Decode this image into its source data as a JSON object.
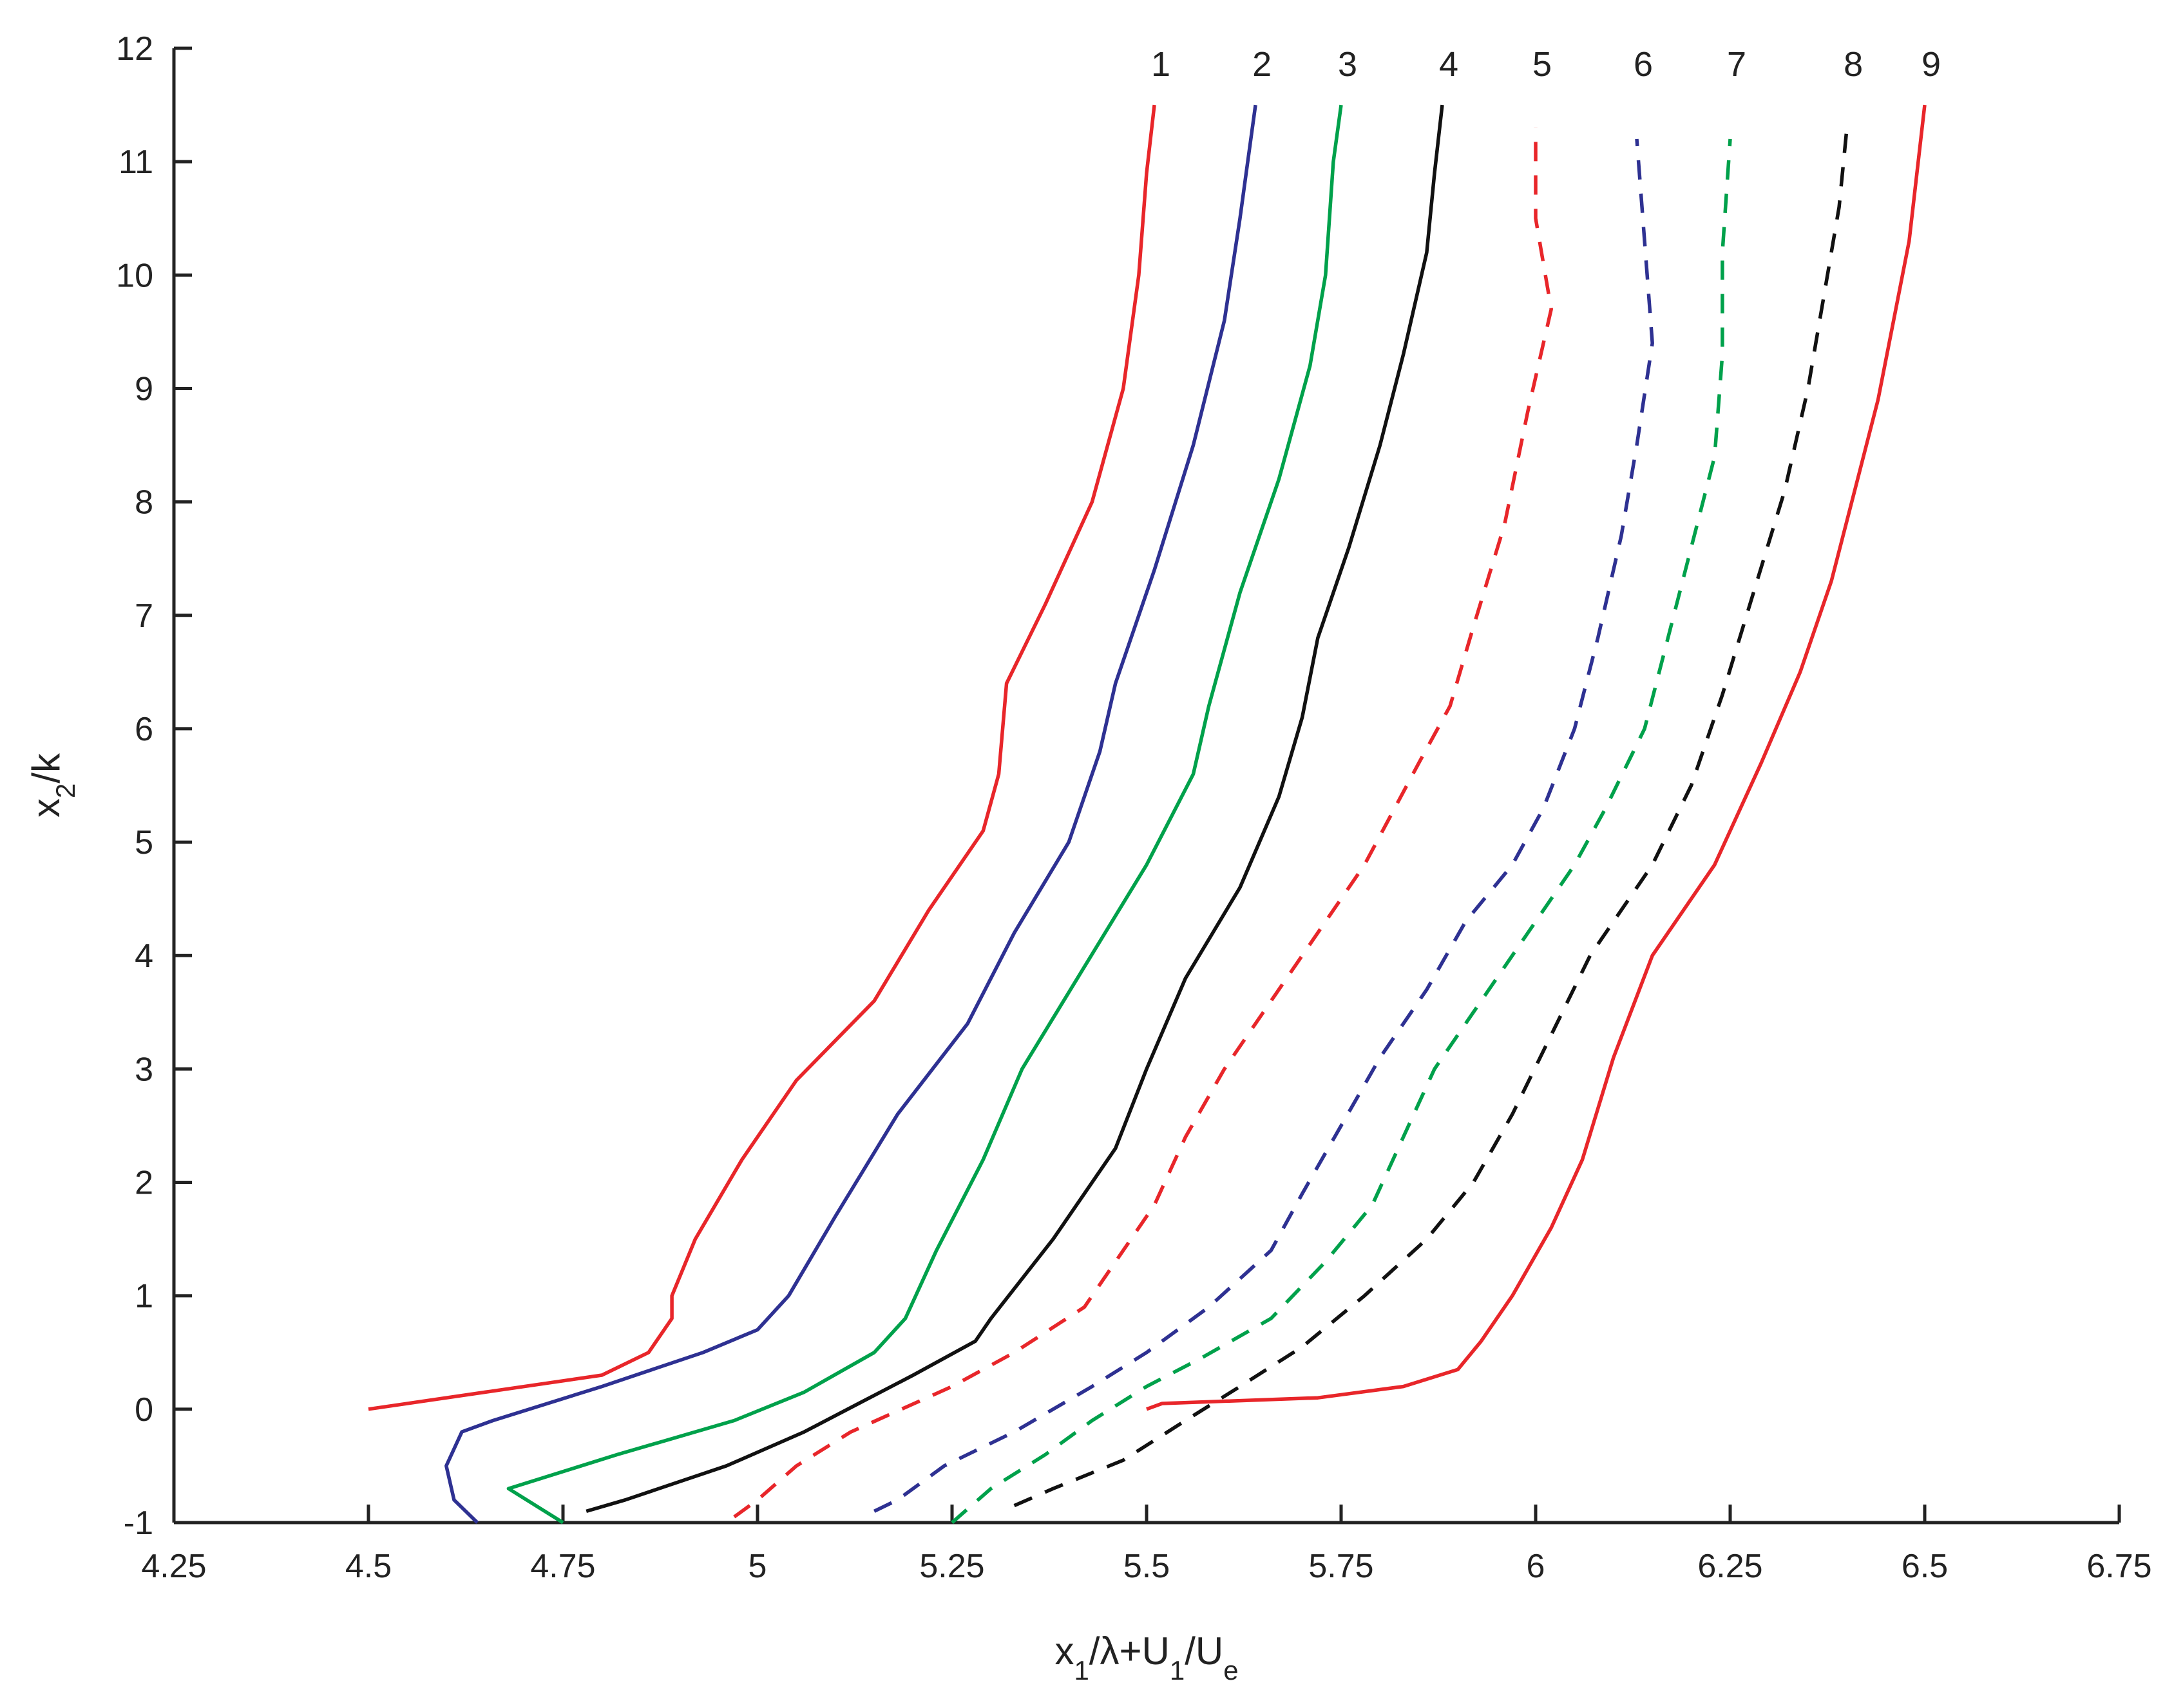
{
  "chart_data": {
    "type": "line",
    "title": "",
    "xlabel": {
      "main": "x",
      "sub1": "1",
      "mid": "/λ+U",
      "sub2": "1",
      "tail": "/U",
      "sub3": "e"
    },
    "ylabel": {
      "main": "x",
      "sub": "2",
      "tail": "/k"
    },
    "xlim": [
      4.25,
      6.75
    ],
    "ylim": [
      -1,
      12
    ],
    "xticks": [
      4.25,
      4.5,
      4.75,
      5,
      5.25,
      5.5,
      5.75,
      6,
      6.25,
      6.5,
      6.75
    ],
    "xtick_labels": [
      "4.25",
      "4.5",
      "4.75",
      "5",
      "5.25",
      "5.5",
      "5.75",
      "6",
      "6.25",
      "6.5",
      "6.75"
    ],
    "yticks": [
      -1,
      0,
      1,
      2,
      3,
      4,
      5,
      6,
      7,
      8,
      9,
      10,
      11,
      12
    ],
    "ytick_labels": [
      "-1",
      "0",
      "1",
      "2",
      "3",
      "4",
      "5",
      "6",
      "7",
      "8",
      "9",
      "10",
      "11",
      "12"
    ],
    "grid": false,
    "legend": "none",
    "series": [
      {
        "label": "1",
        "color": "#e8262a",
        "dash": false,
        "points": [
          [
            4.5,
            0
          ],
          [
            4.65,
            0.15
          ],
          [
            4.8,
            0.3
          ],
          [
            4.86,
            0.5
          ],
          [
            4.89,
            0.8
          ],
          [
            4.89,
            1.0
          ],
          [
            4.92,
            1.5
          ],
          [
            4.98,
            2.2
          ],
          [
            5.05,
            2.9
          ],
          [
            5.15,
            3.6
          ],
          [
            5.22,
            4.4
          ],
          [
            5.29,
            5.1
          ],
          [
            5.31,
            5.6
          ],
          [
            5.32,
            6.4
          ],
          [
            5.37,
            7.1
          ],
          [
            5.43,
            8.0
          ],
          [
            5.47,
            9.0
          ],
          [
            5.49,
            10.0
          ],
          [
            5.5,
            10.9
          ],
          [
            5.51,
            11.5
          ]
        ]
      },
      {
        "label": "2",
        "color": "#2e3192",
        "dash": false,
        "points": [
          [
            4.64,
            -1
          ],
          [
            4.61,
            -0.8
          ],
          [
            4.6,
            -0.5
          ],
          [
            4.62,
            -0.2
          ],
          [
            4.66,
            -0.1
          ],
          [
            4.8,
            0.2
          ],
          [
            4.93,
            0.5
          ],
          [
            5.0,
            0.7
          ],
          [
            5.04,
            1.0
          ],
          [
            5.1,
            1.7
          ],
          [
            5.18,
            2.6
          ],
          [
            5.27,
            3.4
          ],
          [
            5.33,
            4.2
          ],
          [
            5.4,
            5.0
          ],
          [
            5.44,
            5.8
          ],
          [
            5.46,
            6.4
          ],
          [
            5.51,
            7.4
          ],
          [
            5.56,
            8.5
          ],
          [
            5.6,
            9.6
          ],
          [
            5.62,
            10.5
          ],
          [
            5.63,
            11.0
          ],
          [
            5.64,
            11.5
          ]
        ]
      },
      {
        "label": "3",
        "color": "#00a14b",
        "dash": false,
        "points": [
          [
            4.75,
            -1
          ],
          [
            4.68,
            -0.7
          ],
          [
            4.82,
            -0.4
          ],
          [
            4.97,
            -0.1
          ],
          [
            5.06,
            0.15
          ],
          [
            5.15,
            0.5
          ],
          [
            5.19,
            0.8
          ],
          [
            5.23,
            1.4
          ],
          [
            5.29,
            2.2
          ],
          [
            5.34,
            3.0
          ],
          [
            5.42,
            3.9
          ],
          [
            5.5,
            4.8
          ],
          [
            5.56,
            5.6
          ],
          [
            5.58,
            6.2
          ],
          [
            5.62,
            7.2
          ],
          [
            5.67,
            8.2
          ],
          [
            5.71,
            9.2
          ],
          [
            5.73,
            10.0
          ],
          [
            5.74,
            11.0
          ],
          [
            5.75,
            11.5
          ]
        ]
      },
      {
        "label": "4",
        "color": "#111111",
        "dash": false,
        "points": [
          [
            4.78,
            -0.9
          ],
          [
            4.83,
            -0.8
          ],
          [
            4.96,
            -0.5
          ],
          [
            5.06,
            -0.2
          ],
          [
            5.13,
            0.05
          ],
          [
            5.2,
            0.3
          ],
          [
            5.28,
            0.6
          ],
          [
            5.3,
            0.8
          ],
          [
            5.38,
            1.5
          ],
          [
            5.46,
            2.3
          ],
          [
            5.5,
            3.0
          ],
          [
            5.55,
            3.8
          ],
          [
            5.62,
            4.6
          ],
          [
            5.67,
            5.4
          ],
          [
            5.7,
            6.1
          ],
          [
            5.72,
            6.8
          ],
          [
            5.76,
            7.6
          ],
          [
            5.8,
            8.5
          ],
          [
            5.83,
            9.3
          ],
          [
            5.86,
            10.2
          ],
          [
            5.87,
            10.9
          ],
          [
            5.88,
            11.5
          ]
        ]
      },
      {
        "label": "5",
        "color": "#e8262a",
        "dash": true,
        "points": [
          [
            4.97,
            -0.95
          ],
          [
            5.0,
            -0.8
          ],
          [
            5.05,
            -0.5
          ],
          [
            5.12,
            -0.2
          ],
          [
            5.25,
            0.2
          ],
          [
            5.33,
            0.5
          ],
          [
            5.42,
            0.9
          ],
          [
            5.47,
            1.4
          ],
          [
            5.51,
            1.8
          ],
          [
            5.55,
            2.4
          ],
          [
            5.6,
            3.0
          ],
          [
            5.66,
            3.6
          ],
          [
            5.73,
            4.3
          ],
          [
            5.78,
            4.8
          ],
          [
            5.85,
            5.7
          ],
          [
            5.89,
            6.2
          ],
          [
            5.92,
            6.9
          ],
          [
            5.96,
            7.8
          ],
          [
            5.99,
            8.8
          ],
          [
            6.02,
            9.7
          ],
          [
            6.0,
            10.5
          ],
          [
            6.0,
            11.3
          ]
        ]
      },
      {
        "label": "6",
        "color": "#2e3192",
        "dash": true,
        "points": [
          [
            5.15,
            -0.9
          ],
          [
            5.18,
            -0.8
          ],
          [
            5.24,
            -0.5
          ],
          [
            5.33,
            -0.2
          ],
          [
            5.43,
            0.2
          ],
          [
            5.5,
            0.5
          ],
          [
            5.58,
            0.9
          ],
          [
            5.66,
            1.4
          ],
          [
            5.7,
            1.9
          ],
          [
            5.75,
            2.5
          ],
          [
            5.8,
            3.1
          ],
          [
            5.86,
            3.7
          ],
          [
            5.91,
            4.3
          ],
          [
            5.97,
            4.8
          ],
          [
            6.01,
            5.3
          ],
          [
            6.05,
            6.0
          ],
          [
            6.08,
            6.8
          ],
          [
            6.11,
            7.7
          ],
          [
            6.13,
            8.5
          ],
          [
            6.15,
            9.4
          ],
          [
            6.14,
            10.3
          ],
          [
            6.13,
            11.2
          ]
        ]
      },
      {
        "label": "7",
        "color": "#00a14b",
        "dash": true,
        "points": [
          [
            5.25,
            -1
          ],
          [
            5.3,
            -0.7
          ],
          [
            5.37,
            -0.4
          ],
          [
            5.43,
            -0.1
          ],
          [
            5.5,
            0.2
          ],
          [
            5.57,
            0.45
          ],
          [
            5.66,
            0.8
          ],
          [
            5.73,
            1.3
          ],
          [
            5.79,
            1.8
          ],
          [
            5.83,
            2.4
          ],
          [
            5.87,
            3.0
          ],
          [
            5.93,
            3.6
          ],
          [
            5.99,
            4.2
          ],
          [
            6.05,
            4.8
          ],
          [
            6.09,
            5.3
          ],
          [
            6.14,
            6.0
          ],
          [
            6.17,
            6.8
          ],
          [
            6.2,
            7.6
          ],
          [
            6.23,
            8.4
          ],
          [
            6.24,
            9.3
          ],
          [
            6.24,
            10.2
          ],
          [
            6.25,
            11.2
          ]
        ]
      },
      {
        "label": "8",
        "color": "#111111",
        "dash": true,
        "points": [
          [
            5.33,
            -0.85
          ],
          [
            5.38,
            -0.7
          ],
          [
            5.47,
            -0.45
          ],
          [
            5.55,
            -0.1
          ],
          [
            5.62,
            0.2
          ],
          [
            5.7,
            0.55
          ],
          [
            5.78,
            1.0
          ],
          [
            5.86,
            1.5
          ],
          [
            5.92,
            2.0
          ],
          [
            5.97,
            2.6
          ],
          [
            6.02,
            3.3
          ],
          [
            6.07,
            4.0
          ],
          [
            6.15,
            4.8
          ],
          [
            6.2,
            5.5
          ],
          [
            6.24,
            6.3
          ],
          [
            6.28,
            7.2
          ],
          [
            6.32,
            8.1
          ],
          [
            6.35,
            9.0
          ],
          [
            6.37,
            9.8
          ],
          [
            6.39,
            10.6
          ],
          [
            6.4,
            11.3
          ]
        ]
      },
      {
        "label": "9",
        "color": "#e8262a",
        "dash": false,
        "points": [
          [
            5.5,
            0.0
          ],
          [
            5.52,
            0.05
          ],
          [
            5.72,
            0.1
          ],
          [
            5.83,
            0.2
          ],
          [
            5.9,
            0.35
          ],
          [
            5.93,
            0.6
          ],
          [
            5.97,
            1.0
          ],
          [
            6.02,
            1.6
          ],
          [
            6.06,
            2.2
          ],
          [
            6.1,
            3.1
          ],
          [
            6.15,
            4.0
          ],
          [
            6.23,
            4.8
          ],
          [
            6.29,
            5.7
          ],
          [
            6.34,
            6.5
          ],
          [
            6.38,
            7.3
          ],
          [
            6.41,
            8.1
          ],
          [
            6.44,
            8.9
          ],
          [
            6.46,
            9.6
          ],
          [
            6.48,
            10.3
          ],
          [
            6.49,
            10.9
          ],
          [
            6.5,
            11.5
          ]
        ]
      }
    ]
  }
}
